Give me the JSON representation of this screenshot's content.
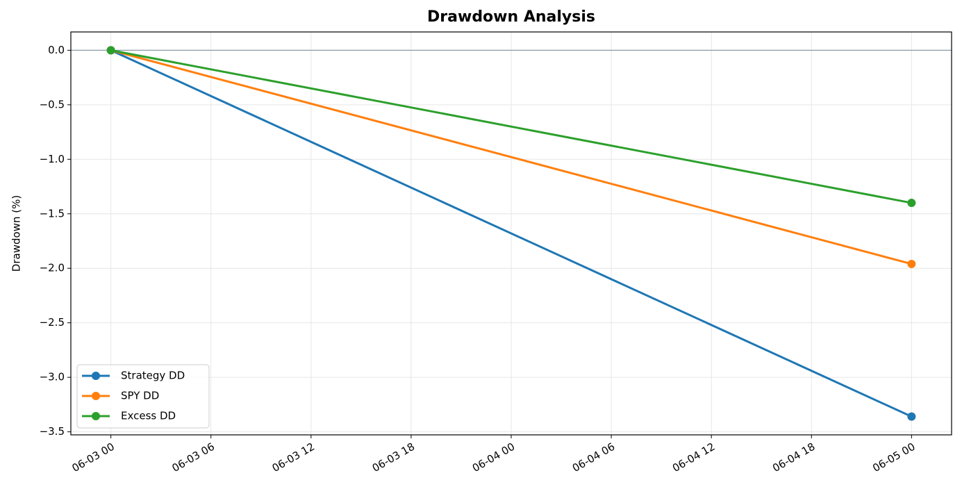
{
  "chart_data": {
    "type": "line",
    "title": "Drawdown Analysis",
    "ylabel": "Drawdown (%)",
    "x": [
      "06-03 00",
      "06-05 00"
    ],
    "series": [
      {
        "name": "Strategy DD",
        "color": "#1f77b4",
        "values": [
          0,
          -3.36
        ]
      },
      {
        "name": "SPY DD",
        "color": "#ff7f0e",
        "values": [
          0,
          -1.96
        ]
      },
      {
        "name": "Excess DD",
        "color": "#2ca02c",
        "values": [
          0,
          -1.4
        ]
      }
    ],
    "xlim": [
      "06-02 21.6",
      "06-05 02.4"
    ],
    "xticks": [
      "06-03 00",
      "06-03 06",
      "06-03 12",
      "06-03 18",
      "06-04 00",
      "06-04 06",
      "06-04 12",
      "06-04 18",
      "06-05 00"
    ],
    "ylim": [
      -3.528,
      0.168
    ],
    "yticks": [
      {
        "value": 0,
        "label": "0.0"
      },
      {
        "value": -0.5,
        "label": "−0.5"
      },
      {
        "value": -1,
        "label": "−1.0"
      },
      {
        "value": -1.5,
        "label": "−1.5"
      },
      {
        "value": -2,
        "label": "−2.0"
      },
      {
        "value": -2.5,
        "label": "−2.5"
      },
      {
        "value": -3,
        "label": "−3.0"
      },
      {
        "value": -3.5,
        "label": "−3.5"
      }
    ],
    "hline": 0,
    "grid": true,
    "legend": "lower left"
  }
}
